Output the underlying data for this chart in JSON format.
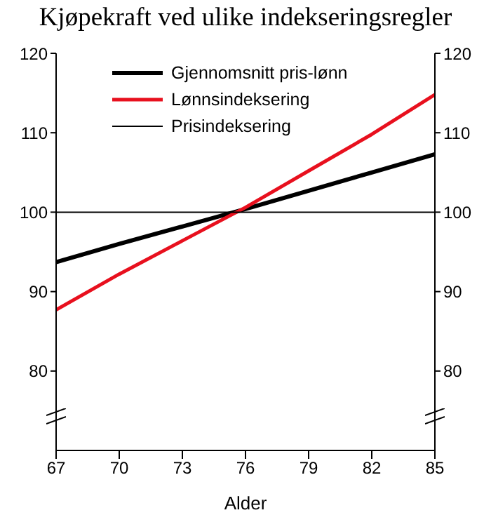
{
  "chart_data": {
    "type": "line",
    "title": "Kjøpekraft ved ulike indekseringsregler",
    "xlabel": "Alder",
    "x": [
      67,
      70,
      73,
      76,
      79,
      82,
      85
    ],
    "series": [
      {
        "name": "Gjennomsnitt pris-lønn",
        "color": "#000000",
        "values": [
          93.7,
          96.0,
          98.2,
          100.4,
          102.7,
          105.0,
          107.3
        ]
      },
      {
        "name": "Lønnsindeksering",
        "color": "#e8101e",
        "values": [
          87.7,
          92.2,
          96.4,
          100.6,
          105.2,
          109.8,
          114.8
        ]
      },
      {
        "name": "Prisindeksering",
        "color": "#000000",
        "values": [
          100,
          100,
          100,
          100,
          100,
          100,
          100
        ]
      }
    ],
    "xlim": [
      67,
      85
    ],
    "xticks": [
      67,
      70,
      73,
      76,
      79,
      82,
      85
    ],
    "ylim": [
      70,
      120
    ],
    "yticks": [
      80,
      90,
      100,
      110,
      120
    ],
    "y2lim": [
      70,
      120
    ],
    "y2ticks": [
      80,
      90,
      100,
      110,
      120
    ],
    "legend": "top left",
    "marker": "none",
    "line_style": "solid",
    "grid": false
  }
}
